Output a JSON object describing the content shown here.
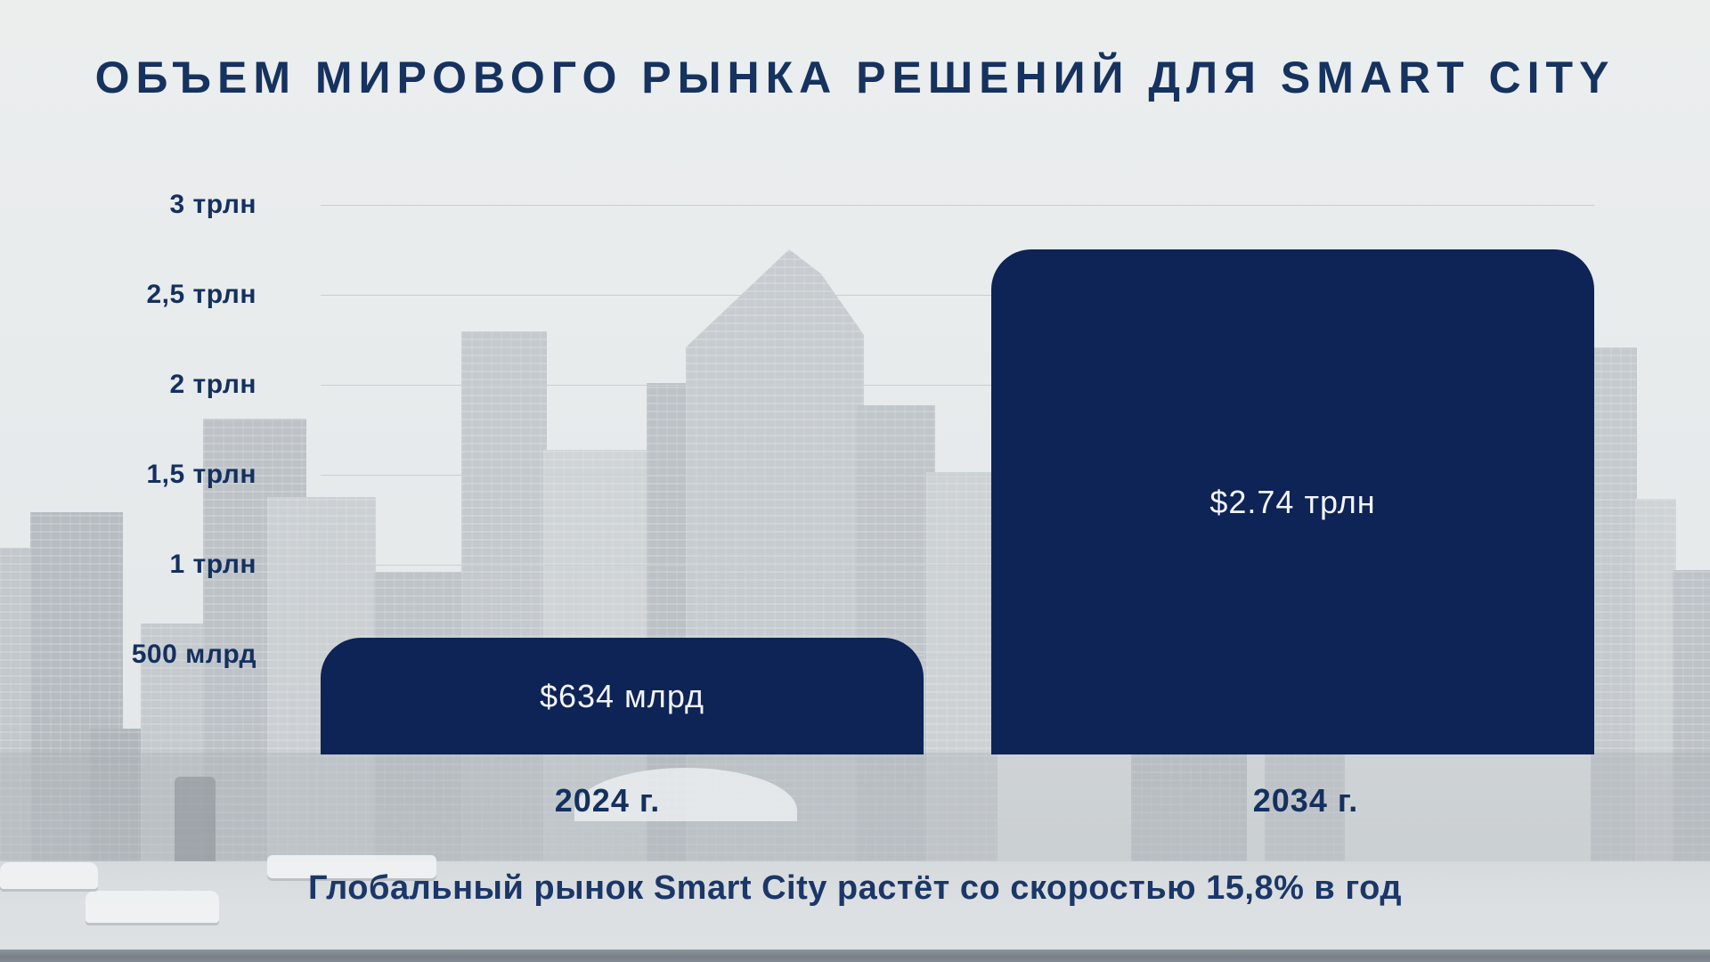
{
  "title": "ОБЪЕМ МИРОВОГО РЫНКА РЕШЕНИЙ ДЛЯ SMART CITY",
  "caption": "Глобальный рынок Smart City растёт со скоростью 15,8% в год",
  "colors": {
    "bar": "#0e2356",
    "heading_text": "#16325f",
    "axis_text": "#14305f",
    "bar_label_text": "#f2f4f8",
    "gridline": "#c9cfd2",
    "background": "#e7ebec"
  },
  "chart_data": {
    "type": "bar",
    "title": "ОБЪЕМ МИРОВОГО РЫНКА РЕШЕНИЙ ДЛЯ SMART CITY",
    "annotation": "Глобальный рынок Smart City растёт со скоростью 15,8% в год",
    "categories": [
      "2024 г.",
      "2034 г."
    ],
    "values_trln": [
      0.634,
      2.74
    ],
    "bar_labels": [
      "$634 млрд",
      "$2.74 трлн"
    ],
    "y_ticks": [
      "3 трлн",
      "2,5 трлн",
      "2 трлн",
      "1,5 трлн",
      "1 трлн",
      "500 млрд"
    ],
    "y_tick_values_trln": [
      3,
      2.5,
      2,
      1.5,
      1,
      0.5
    ],
    "ylabel": "",
    "xlabel": "",
    "ylim": [
      0,
      3.1
    ],
    "grid": true,
    "legend": false,
    "background_description": "faded grayscale city skyline photo"
  }
}
